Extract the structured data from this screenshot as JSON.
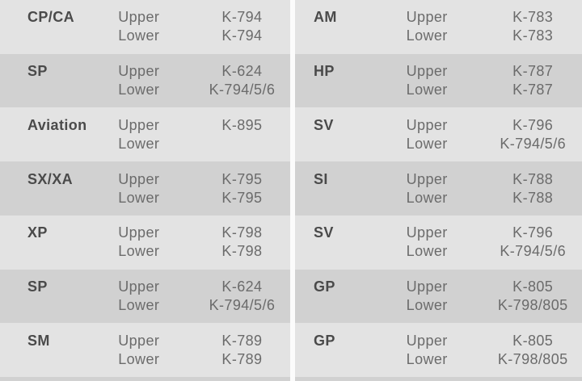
{
  "table": {
    "row_labels": {
      "upper": "Upper",
      "lower": "Lower"
    },
    "colors": {
      "row_light": "#e3e3e3",
      "row_dark": "#d1d1d1",
      "divider": "#fbfbfb",
      "label_text": "#4a4a4a",
      "value_text": "#6b6b6b"
    },
    "columns": [
      {
        "rows": [
          {
            "label": "CP/CA",
            "upper": "K-794",
            "lower": "K-794",
            "shade": "light"
          },
          {
            "label": "SP",
            "upper": "K-624",
            "lower": "K-794/5/6",
            "shade": "dark"
          },
          {
            "label": "Aviation",
            "upper": "K-895",
            "lower": "",
            "shade": "light"
          },
          {
            "label": "SX/XA",
            "upper": "K-795",
            "lower": "K-795",
            "shade": "dark"
          },
          {
            "label": "XP",
            "upper": "K-798",
            "lower": "K-798",
            "shade": "light"
          },
          {
            "label": "SP",
            "upper": "K-624",
            "lower": "K-794/5/6",
            "shade": "dark"
          },
          {
            "label": "SM",
            "upper": "K-789",
            "lower": "K-789",
            "shade": "light"
          }
        ]
      },
      {
        "rows": [
          {
            "label": "AM",
            "upper": "K-783",
            "lower": "K-783",
            "shade": "light"
          },
          {
            "label": "HP",
            "upper": "K-787",
            "lower": "K-787",
            "shade": "dark"
          },
          {
            "label": "SV",
            "upper": "K-796",
            "lower": "K-794/5/6",
            "shade": "light"
          },
          {
            "label": "SI",
            "upper": "K-788",
            "lower": "K-788",
            "shade": "dark"
          },
          {
            "label": "SV",
            "upper": "K-796",
            "lower": "K-794/5/6",
            "shade": "light"
          },
          {
            "label": "GP",
            "upper": "K-805",
            "lower": "K-798/805",
            "shade": "dark"
          },
          {
            "label": "GP",
            "upper": "K-805",
            "lower": "K-798/805",
            "shade": "light"
          }
        ]
      }
    ]
  }
}
